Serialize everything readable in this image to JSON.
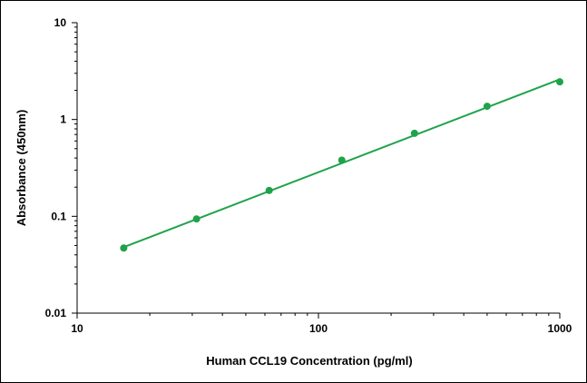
{
  "chart_data": {
    "type": "scatter",
    "title": "",
    "xlabel": "Human CCL19 Concentration (pg/ml)",
    "ylabel": "Absorbance (450nm)",
    "x_scale": "log",
    "y_scale": "log",
    "xlim": [
      10,
      1000
    ],
    "ylim": [
      0.01,
      10
    ],
    "x_ticks": [
      "10",
      "100",
      "1000"
    ],
    "y_ticks": [
      "0.01",
      "0.1",
      "1",
      "10"
    ],
    "grid": false,
    "legend": false,
    "series": [
      {
        "x": [
          15.6,
          31.25,
          62.5,
          125,
          250,
          500,
          1000
        ],
        "y": [
          0.047,
          0.094,
          0.185,
          0.38,
          0.72,
          1.37,
          2.45
        ]
      }
    ],
    "trendline": {
      "x": [
        15.6,
        1000
      ],
      "y": [
        0.048,
        2.6
      ]
    },
    "colors": {
      "series": "#1fa34a",
      "axis": "#000000"
    }
  }
}
